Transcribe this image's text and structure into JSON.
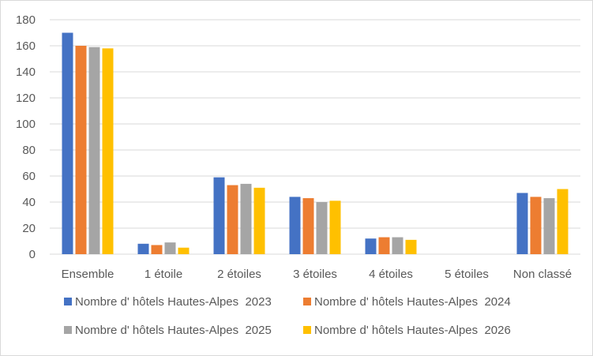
{
  "chart_data": {
    "type": "bar",
    "title": "",
    "xlabel": "",
    "ylabel": "",
    "ylim": [
      0,
      180
    ],
    "yticks": [
      0,
      20,
      40,
      60,
      80,
      100,
      120,
      140,
      160,
      180
    ],
    "grid": "horizontal",
    "legend": "bottom",
    "categories": [
      "Ensemble",
      "1 étoile",
      "2 étoiles",
      "3 étoiles",
      "4 étoiles",
      "5 étoiles",
      "Non classé"
    ],
    "series": [
      {
        "name": "Nombre d' hôtels Hautes-Alpes  2023",
        "color": "#4472C4",
        "values": [
          170,
          8,
          59,
          44,
          12,
          0,
          47
        ]
      },
      {
        "name": "Nombre d' hôtels Hautes-Alpes  2024",
        "color": "#ED7D31",
        "values": [
          160,
          7,
          53,
          43,
          13,
          0,
          44
        ]
      },
      {
        "name": "Nombre d' hôtels Hautes-Alpes  2025",
        "color": "#A5A5A5",
        "values": [
          159,
          9,
          54,
          40,
          13,
          0,
          43
        ]
      },
      {
        "name": "Nombre d' hôtels Hautes-Alpes  2026",
        "color": "#FFC000",
        "values": [
          158,
          5,
          51,
          41,
          11,
          0,
          50
        ]
      }
    ]
  }
}
